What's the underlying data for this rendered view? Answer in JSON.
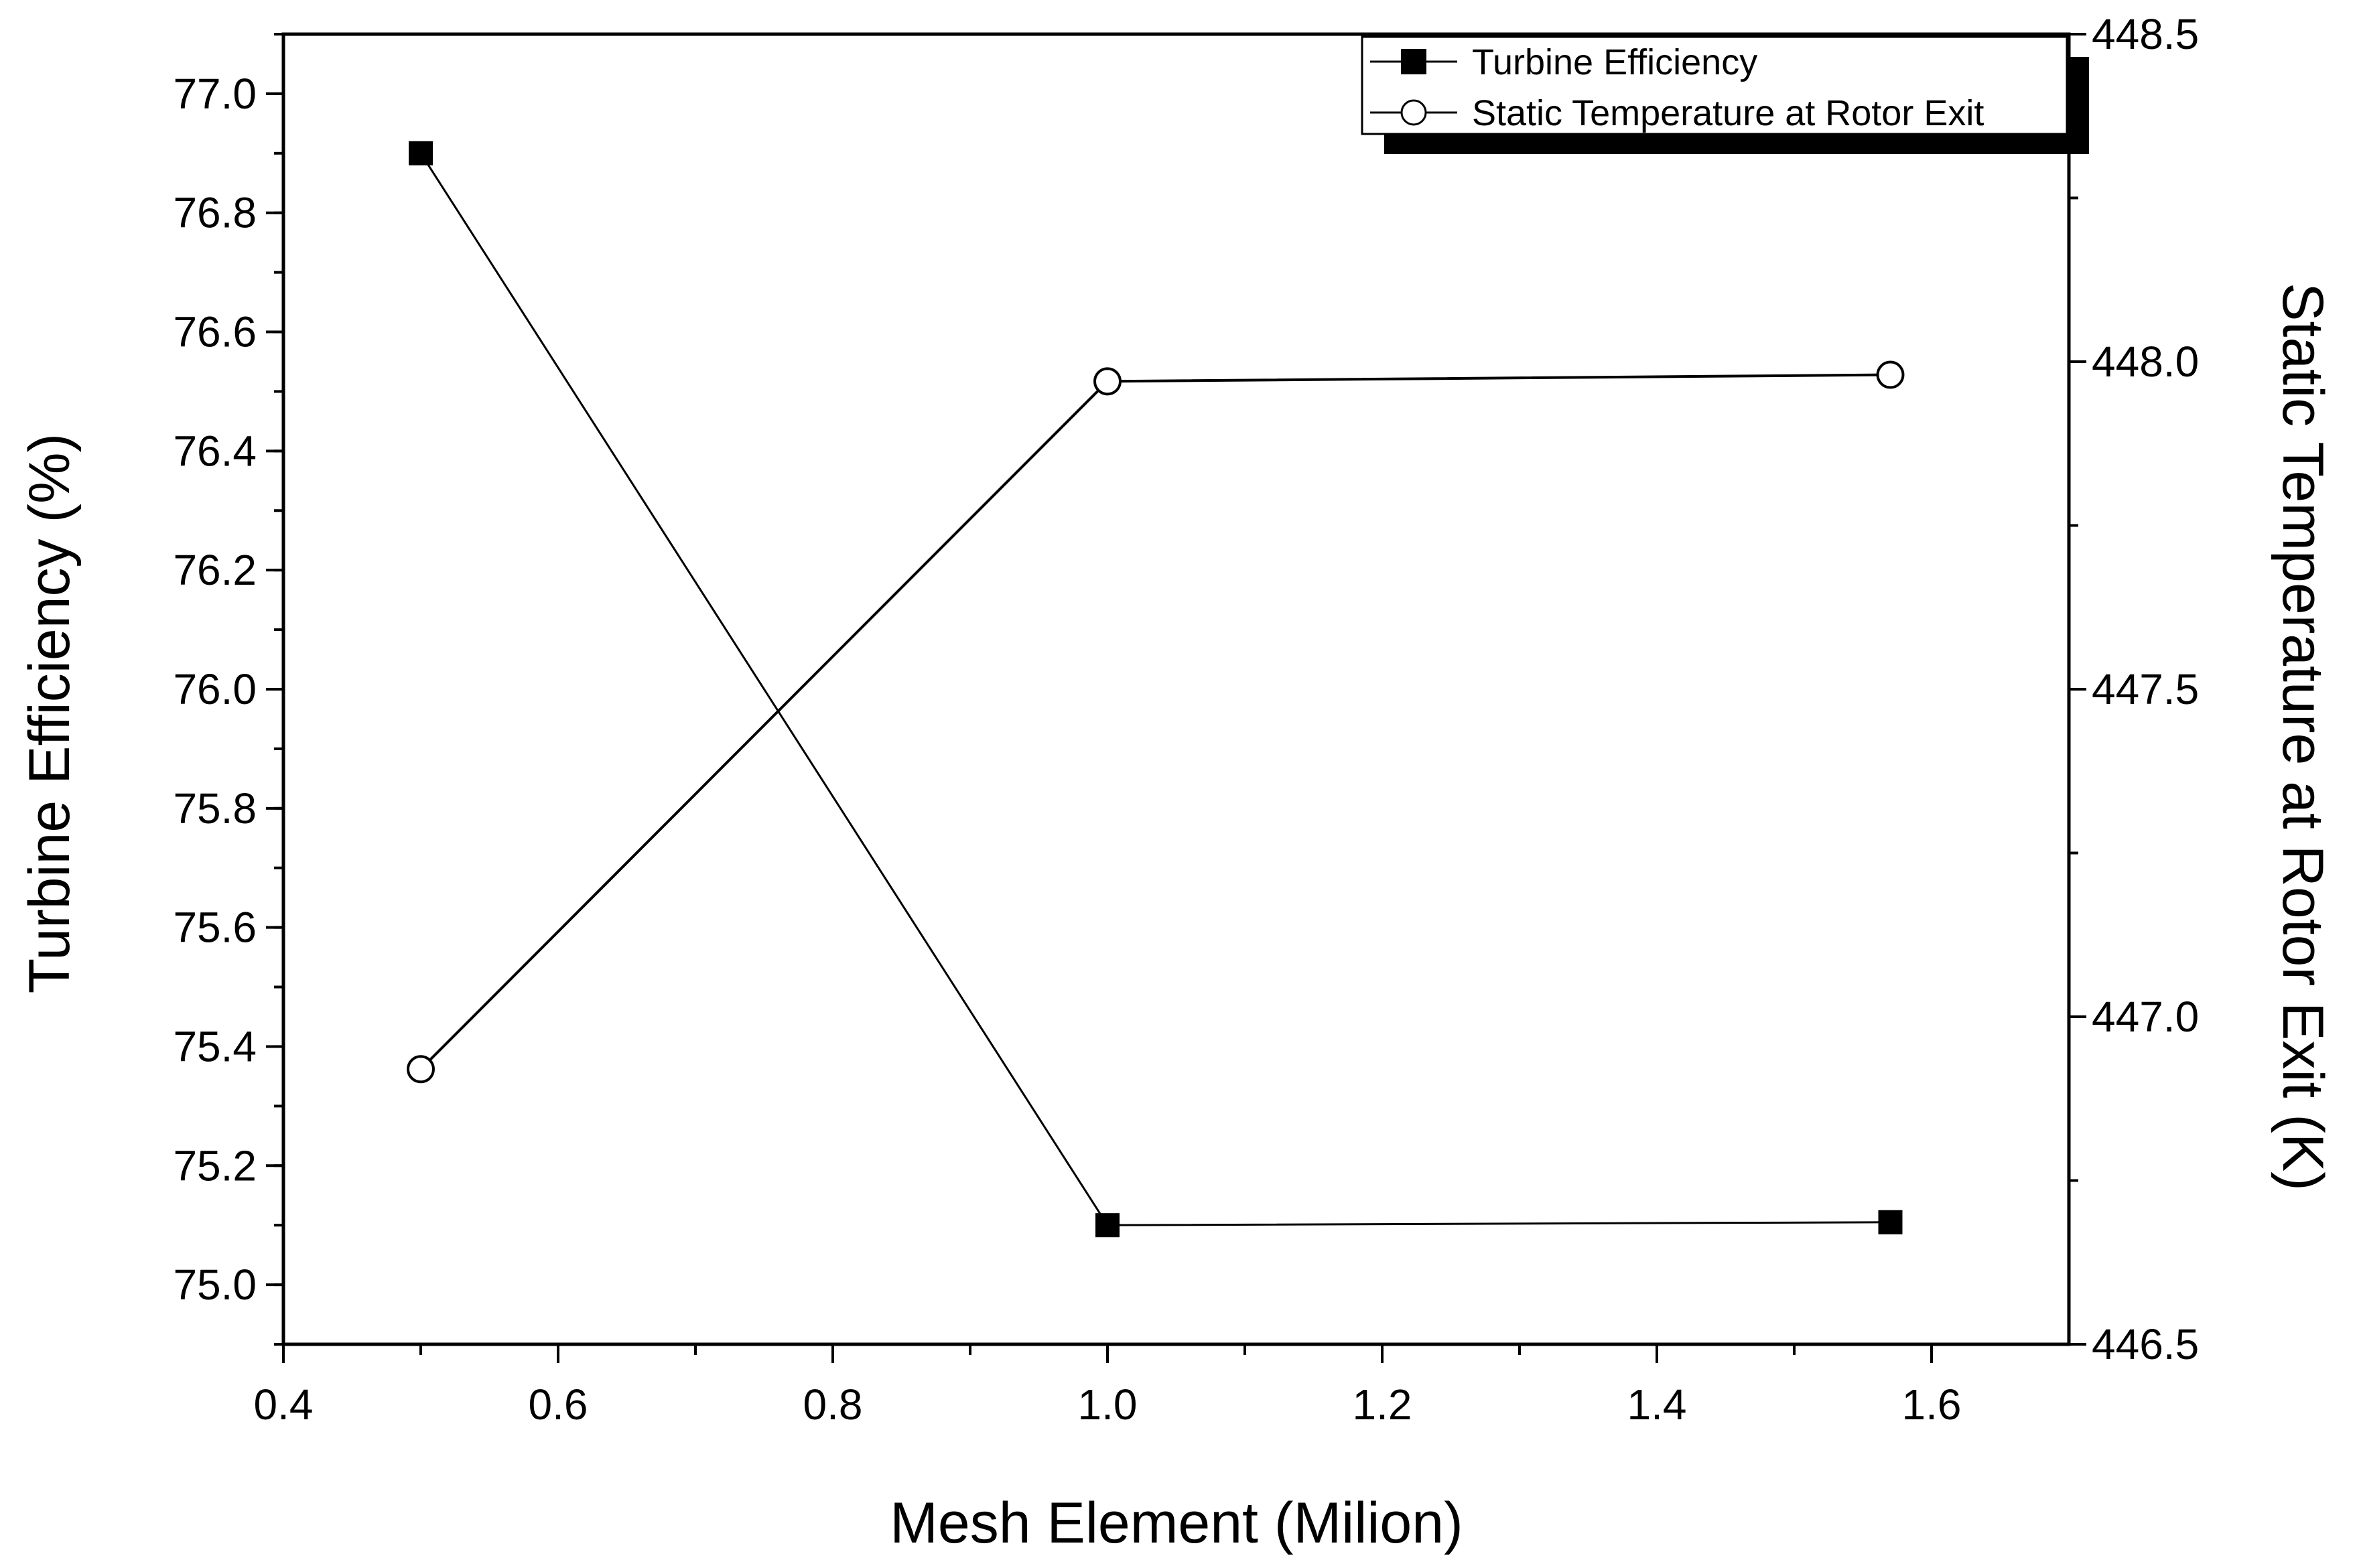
{
  "chart_data": {
    "type": "line",
    "xlabel": "Mesh Element (Milion)",
    "ylabel_left": "Turbine Efficiency (%)",
    "ylabel_right": "Static Temperature at Rotor Exit (K)",
    "xlim": [
      0.4,
      1.7
    ],
    "ylim_left": [
      74.9,
      77.1
    ],
    "ylim_right": [
      446.5,
      448.5
    ],
    "x_ticks": [
      "0.4",
      "0.6",
      "0.8",
      "1.0",
      "1.2",
      "1.4",
      "1.6"
    ],
    "y_left_ticks": [
      "75.0",
      "75.2",
      "75.4",
      "75.6",
      "75.8",
      "76.0",
      "76.2",
      "76.4",
      "76.6",
      "76.8",
      "77.0"
    ],
    "y_right_ticks": [
      "446.5",
      "447.0",
      "447.5",
      "448.0",
      "448.5"
    ],
    "grid": false,
    "legend_position": "top-right",
    "series": [
      {
        "name": "Turbine Efficiency",
        "axis": "left",
        "marker": "filled-square",
        "x": [
          0.5,
          1.0,
          1.57
        ],
        "y": [
          76.9,
          75.1,
          75.105
        ]
      },
      {
        "name": "Static Temperature at Rotor Exit",
        "axis": "right",
        "marker": "open-circle",
        "x": [
          0.5,
          1.0,
          1.57
        ],
        "y": [
          446.92,
          447.97,
          447.98
        ]
      }
    ]
  }
}
